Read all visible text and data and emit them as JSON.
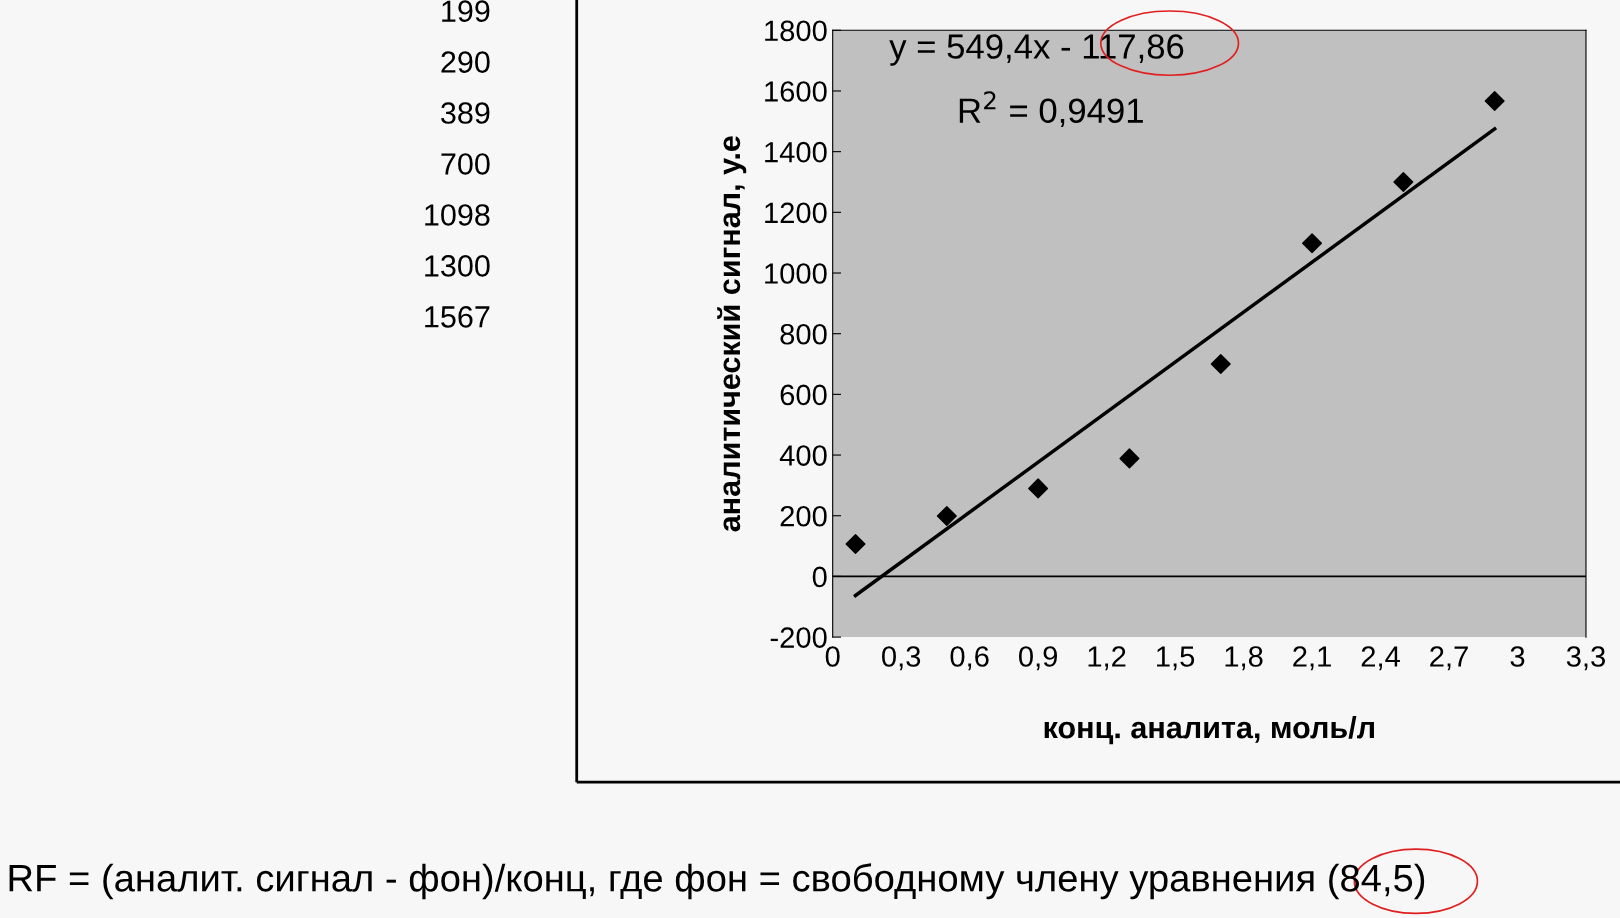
{
  "chart_data": {
    "type": "scatter",
    "xlabel": "конц. аналита, моль/л",
    "ylabel": "аналитический сигнал, у.е",
    "x": [
      0.1,
      0.5,
      0.9,
      1.3,
      1.7,
      2.1,
      2.5,
      2.9
    ],
    "series": [
      {
        "color": "#000000",
        "values": [
          107,
          199,
          290,
          389,
          700,
          1098,
          1300,
          1567
        ],
        "marker": "diamond"
      },
      {
        "type": "line",
        "color": "#000000",
        "x": [
          0.1,
          2.9
        ],
        "values": [
          -63,
          1475
        ],
        "marker": "none",
        "line_style": "solid"
      }
    ],
    "xlim": [
      0,
      3.3
    ],
    "xticks": [
      0,
      {
        "value": 0.3,
        "label": "0,3"
      },
      {
        "value": 0.6,
        "label": "0,6"
      },
      {
        "value": 0.9,
        "label": "0,9"
      },
      {
        "value": 1.2,
        "label": "1,2"
      },
      {
        "value": 1.5,
        "label": "1,5"
      },
      {
        "value": 1.8,
        "label": "1,8"
      },
      {
        "value": 2.1,
        "label": "2,1"
      },
      {
        "value": 2.4,
        "label": "2,4"
      },
      {
        "value": 2.7,
        "label": "2,7"
      },
      3,
      {
        "value": 3.3,
        "label": "3,3"
      }
    ],
    "ylim": [
      -200,
      1800
    ],
    "yticks": [
      -200,
      0,
      200,
      400,
      600,
      800,
      1000,
      1200,
      1400,
      1600,
      1800
    ],
    "grid": false,
    "ref_lines": [
      {
        "axis": "y",
        "value": 0,
        "color": "#000000",
        "line_style": "solid"
      }
    ],
    "annotations": [
      "y = 549,4x - 117,86",
      "R$^{2}$ = 0,9491",
      "199",
      "290",
      "389",
      "700",
      "1098",
      "1300",
      "1567",
      "RF = (аналит. сигнал - фон)/конц, где фон = свободному члену уравнения (84,5)"
    ]
  }
}
